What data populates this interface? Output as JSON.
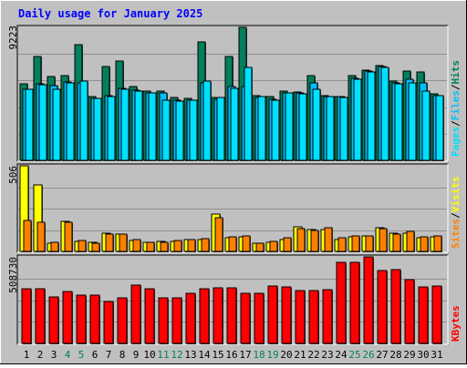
{
  "title": "Daily usage for January 2025",
  "colors": {
    "background": "#C0C0C0",
    "title": "#0000FF",
    "hits": "#00805C",
    "files": "#00C0FF",
    "pages": "#00E0FF",
    "visits": "#FFFF00",
    "sites": "#FF8000",
    "kbytes": "#FF0000",
    "weekend_day": "#00805C",
    "weekday_day": "#000000"
  },
  "chart_data": [
    {
      "type": "bar",
      "panel": "hits-files-pages",
      "categories": [
        "1",
        "2",
        "3",
        "4",
        "5",
        "6",
        "7",
        "8",
        "9",
        "10",
        "11",
        "12",
        "13",
        "14",
        "15",
        "16",
        "17",
        "18",
        "19",
        "20",
        "21",
        "22",
        "23",
        "24",
        "25",
        "26",
        "27",
        "28",
        "29",
        "30",
        "31"
      ],
      "weekend_days": [
        "4",
        "5",
        "11",
        "12",
        "18",
        "19",
        "25",
        "26"
      ],
      "ymax_label": "9223",
      "ylim": [
        0,
        9223
      ],
      "axis_label_parts": [
        "Pages",
        "Files",
        "Hits"
      ],
      "series": [
        {
          "name": "Hits",
          "values": [
            5300,
            7200,
            5800,
            5900,
            8000,
            4400,
            6500,
            6900,
            5100,
            4800,
            4800,
            4350,
            4300,
            8200,
            4350,
            7200,
            9223,
            4500,
            4400,
            4800,
            4750,
            5900,
            4500,
            4450,
            5900,
            6250,
            6600,
            5500,
            6200,
            6150,
            4600
          ]
        },
        {
          "name": "Files",
          "values": [
            4950,
            5300,
            5200,
            5450,
            5350,
            4300,
            4500,
            5000,
            4850,
            4700,
            4650,
            4200,
            4200,
            5400,
            4250,
            5100,
            5100,
            4350,
            4250,
            4700,
            4650,
            5350,
            4400,
            4400,
            5700,
            6200,
            6500,
            5400,
            5600,
            5400,
            4500
          ]
        },
        {
          "name": "Pages",
          "values": [
            4900,
            5250,
            4950,
            5400,
            5500,
            4300,
            4400,
            4950,
            4800,
            4650,
            4200,
            4100,
            4200,
            5500,
            4350,
            5000,
            6450,
            4400,
            4200,
            4650,
            4600,
            4950,
            4400,
            4350,
            5600,
            6150,
            6450,
            5300,
            5400,
            4800,
            4500
          ]
        }
      ]
    },
    {
      "type": "bar",
      "panel": "visits-sites",
      "categories": [
        "1",
        "2",
        "3",
        "4",
        "5",
        "6",
        "7",
        "8",
        "9",
        "10",
        "11",
        "12",
        "13",
        "14",
        "15",
        "16",
        "17",
        "18",
        "19",
        "20",
        "21",
        "22",
        "23",
        "24",
        "25",
        "26",
        "27",
        "28",
        "29",
        "30",
        "31"
      ],
      "ymax_label": "506",
      "ylim": [
        0,
        506
      ],
      "axis_label_parts": [
        "Sites",
        "Visits"
      ],
      "series": [
        {
          "name": "Visits",
          "values": [
            506,
            392,
            50,
            180,
            60,
            55,
            105,
            100,
            65,
            55,
            60,
            60,
            70,
            70,
            222,
            80,
            85,
            50,
            55,
            70,
            148,
            130,
            130,
            70,
            84,
            90,
            139,
            105,
            110,
            80,
            84
          ]
        },
        {
          "name": "Sites",
          "values": [
            185,
            170,
            55,
            170,
            65,
            50,
            100,
            100,
            68,
            55,
            55,
            65,
            72,
            78,
            200,
            85,
            90,
            50,
            60,
            80,
            135,
            125,
            140,
            80,
            90,
            90,
            135,
            100,
            120,
            85,
            90
          ]
        }
      ]
    },
    {
      "type": "bar",
      "panel": "kbytes",
      "categories": [
        "1",
        "2",
        "3",
        "4",
        "5",
        "6",
        "7",
        "8",
        "9",
        "10",
        "11",
        "12",
        "13",
        "14",
        "15",
        "16",
        "17",
        "18",
        "19",
        "20",
        "21",
        "22",
        "23",
        "24",
        "25",
        "26",
        "27",
        "28",
        "29",
        "30",
        "31"
      ],
      "ymax_label": "508730",
      "ylim": [
        0,
        508730
      ],
      "axis_label_parts": [
        "KBytes"
      ],
      "series": [
        {
          "name": "KBytes",
          "values": [
            320000,
            320000,
            272000,
            305000,
            284000,
            284000,
            247000,
            268000,
            345000,
            320000,
            268000,
            268000,
            296000,
            320000,
            327000,
            327000,
            296000,
            296000,
            338000,
            331000,
            313000,
            311000,
            318000,
            476000,
            478000,
            508730,
            429000,
            435000,
            373000,
            330000,
            338000
          ]
        }
      ]
    }
  ]
}
